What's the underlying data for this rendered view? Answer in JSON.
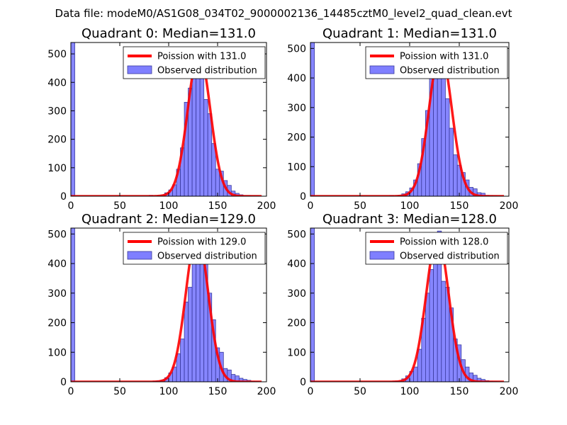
{
  "figure": {
    "suptitle": "Data file: modeM0/AS1G08_034T02_9000002136_14485cztM0_level2_quad_clean.evt"
  },
  "colors": {
    "poisson_line": "#ff0000",
    "histogram_fill": "#7f7fff",
    "histogram_edge": "#3a3a9c",
    "axes": "#000000"
  },
  "chart_data": [
    {
      "type": "bar",
      "title": "Quadrant 0: Median=131.0",
      "xlim": [
        0,
        200
      ],
      "ylim": [
        0,
        540
      ],
      "xticks": [
        0,
        50,
        100,
        150,
        200
      ],
      "yticks": [
        0,
        100,
        200,
        300,
        400,
        500
      ],
      "legend_position": "top-right",
      "legend": [
        "Poission with 131.0",
        "Observed distribution"
      ],
      "poisson_mean": 131.0,
      "poisson_peak": 505,
      "histogram": {
        "bin_width": 4,
        "bin_starts": [
          0,
          80,
          84,
          88,
          92,
          96,
          100,
          104,
          108,
          112,
          116,
          120,
          124,
          128,
          132,
          136,
          140,
          144,
          148,
          152,
          156,
          160,
          164,
          168,
          172,
          176,
          180,
          184,
          188
        ],
        "counts": [
          540,
          3,
          0,
          2,
          5,
          12,
          22,
          40,
          95,
          170,
          330,
          380,
          440,
          480,
          420,
          340,
          290,
          185,
          95,
          88,
          55,
          38,
          18,
          10,
          5,
          2,
          2,
          1,
          1
        ]
      }
    },
    {
      "type": "bar",
      "title": "Quadrant 1: Median=131.0",
      "xlim": [
        0,
        200
      ],
      "ylim": [
        0,
        520
      ],
      "xticks": [
        0,
        50,
        100,
        150,
        200
      ],
      "yticks": [
        0,
        100,
        200,
        300,
        400,
        500
      ],
      "legend_position": "top-right",
      "legend": [
        "Poission with 131.0",
        "Observed distribution"
      ],
      "poisson_mean": 131.0,
      "poisson_peak": 490,
      "histogram": {
        "bin_width": 4,
        "bin_starts": [
          0,
          80,
          84,
          88,
          92,
          96,
          100,
          104,
          108,
          112,
          116,
          120,
          124,
          128,
          132,
          136,
          140,
          144,
          148,
          152,
          156,
          160,
          164,
          168,
          172,
          176,
          180,
          184
        ],
        "counts": [
          520,
          2,
          0,
          3,
          8,
          15,
          28,
          55,
          110,
          195,
          290,
          400,
          460,
          450,
          430,
          330,
          230,
          140,
          105,
          80,
          55,
          30,
          25,
          12,
          10,
          3,
          2,
          1
        ]
      }
    },
    {
      "type": "bar",
      "title": "Quadrant 2: Median=129.0",
      "xlim": [
        0,
        200
      ],
      "ylim": [
        0,
        520
      ],
      "xticks": [
        0,
        50,
        100,
        150,
        200
      ],
      "yticks": [
        0,
        100,
        200,
        300,
        400,
        500
      ],
      "legend_position": "top-right",
      "legend": [
        "Poission with 129.0",
        "Observed distribution"
      ],
      "poisson_mean": 129.0,
      "poisson_peak": 500,
      "histogram": {
        "bin_width": 4,
        "bin_starts": [
          0,
          84,
          88,
          92,
          96,
          100,
          104,
          108,
          112,
          116,
          120,
          124,
          128,
          132,
          136,
          140,
          144,
          148,
          152,
          156,
          160,
          164,
          168,
          172,
          176,
          180,
          184,
          188
        ],
        "counts": [
          520,
          2,
          4,
          6,
          14,
          30,
          50,
          95,
          145,
          270,
          320,
          400,
          470,
          490,
          420,
          300,
          210,
          115,
          100,
          45,
          40,
          25,
          20,
          12,
          8,
          5,
          2,
          1
        ]
      }
    },
    {
      "type": "bar",
      "title": "Quadrant 3: Median=128.0",
      "xlim": [
        0,
        200
      ],
      "ylim": [
        0,
        520
      ],
      "xticks": [
        0,
        50,
        100,
        150,
        200
      ],
      "yticks": [
        0,
        100,
        200,
        300,
        400,
        500
      ],
      "legend_position": "top-right",
      "legend": [
        "Poission with 128.0",
        "Observed distribution"
      ],
      "poisson_mean": 128.0,
      "poisson_peak": 490,
      "histogram": {
        "bin_width": 4,
        "bin_starts": [
          0,
          80,
          84,
          88,
          92,
          96,
          100,
          104,
          108,
          112,
          116,
          120,
          124,
          128,
          132,
          136,
          140,
          144,
          148,
          152,
          156,
          160,
          164,
          168,
          172,
          176,
          180,
          184
        ],
        "counts": [
          520,
          1,
          2,
          3,
          10,
          20,
          35,
          50,
          110,
          215,
          300,
          380,
          450,
          510,
          340,
          320,
          250,
          145,
          125,
          75,
          50,
          30,
          22,
          12,
          8,
          4,
          2,
          1
        ]
      }
    }
  ]
}
